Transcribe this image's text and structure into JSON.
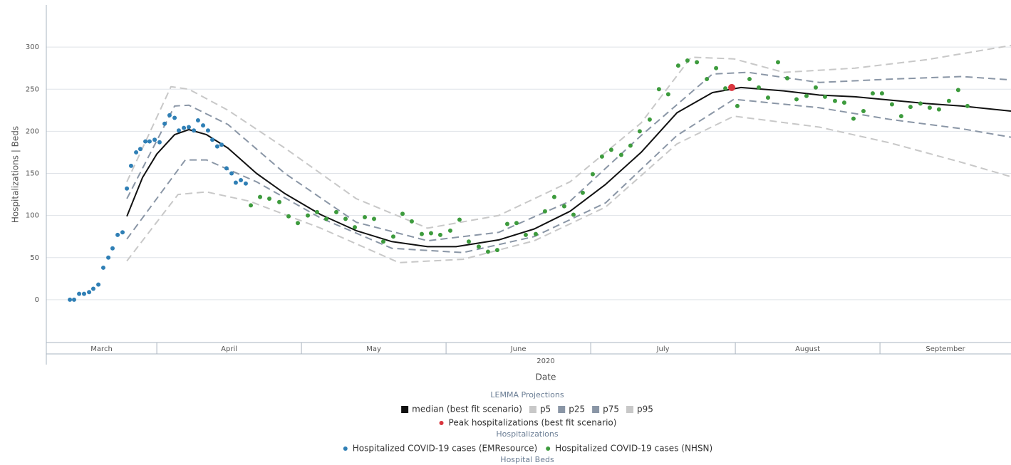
{
  "chart_data": {
    "type": "line",
    "y_label": "Hospitalizations | Beds",
    "x_label": "Date",
    "year": "2020",
    "months": [
      "March",
      "April",
      "May",
      "June",
      "July",
      "August",
      "September"
    ],
    "xlim": [
      3.236,
      9.906
    ],
    "xticks": [
      4,
      5,
      6,
      7,
      8,
      9
    ],
    "ylim": [
      -50,
      350
    ],
    "yticks": [
      0,
      50,
      100,
      150,
      200,
      250,
      300
    ],
    "grid": true,
    "legend_groups": [
      "LEMMA Projections",
      "Hospitalizations",
      "Hospital Beds"
    ],
    "series": [
      {
        "name": "median (best fit scenario)",
        "kind": "line",
        "group": 0,
        "color": "#111111",
        "dashed": false,
        "x": [
          3.793,
          3.901,
          4.0,
          4.123,
          4.221,
          4.344,
          4.492,
          4.689,
          4.886,
          5.133,
          5.379,
          5.625,
          5.872,
          6.069,
          6.364,
          6.61,
          6.857,
          7.103,
          7.349,
          7.596,
          7.842,
          8.039,
          8.334,
          8.581,
          8.827,
          9.074,
          9.32,
          9.566,
          9.906
        ],
        "values": [
          99,
          145,
          173,
          196,
          202,
          196,
          180,
          150,
          126,
          101,
          82,
          69,
          63,
          63,
          71,
          84,
          105,
          137,
          175,
          222,
          246,
          252,
          248,
          243,
          241,
          237,
          233,
          230,
          224
        ]
      },
      {
        "name": "p5",
        "kind": "line",
        "group": 0,
        "color": "#c8c8c8",
        "dashed": true,
        "x": [
          3.793,
          4.147,
          4.344,
          4.64,
          5.133,
          5.674,
          6.118,
          6.61,
          7.103,
          7.596,
          7.99,
          8.581,
          9.074,
          9.566,
          9.906
        ],
        "values": [
          46,
          125,
          128,
          117,
          85,
          44,
          48,
          70,
          110,
          185,
          218,
          205,
          186,
          163,
          146
        ]
      },
      {
        "name": "p25",
        "kind": "line",
        "group": 0,
        "color": "#8a96a6",
        "dashed": true,
        "x": [
          3.793,
          4.197,
          4.344,
          4.689,
          5.133,
          5.625,
          6.118,
          6.61,
          7.103,
          7.596,
          7.99,
          8.581,
          9.074,
          9.566,
          9.906
        ],
        "values": [
          72,
          166,
          166,
          140,
          97,
          61,
          56,
          75,
          115,
          195,
          238,
          228,
          214,
          203,
          193
        ]
      },
      {
        "name": "p75",
        "kind": "line",
        "group": 0,
        "color": "#8a96a6",
        "dashed": true,
        "x": [
          3.793,
          4.123,
          4.221,
          4.492,
          4.886,
          5.379,
          5.872,
          6.364,
          6.857,
          7.349,
          7.842,
          8.088,
          8.581,
          9.074,
          9.566,
          9.906
        ],
        "values": [
          120,
          230,
          231,
          208,
          150,
          92,
          70,
          80,
          117,
          195,
          268,
          270,
          258,
          262,
          265,
          261
        ]
      },
      {
        "name": "p95",
        "kind": "line",
        "group": 0,
        "color": "#c8c8c8",
        "dashed": true,
        "x": [
          3.793,
          4.098,
          4.221,
          4.492,
          4.886,
          5.379,
          5.872,
          6.364,
          6.857,
          7.349,
          7.694,
          7.99,
          8.334,
          8.827,
          9.32,
          9.906
        ],
        "values": [
          140,
          253,
          250,
          225,
          180,
          120,
          85,
          100,
          140,
          210,
          288,
          286,
          270,
          275,
          285,
          302
        ]
      },
      {
        "name": "Peak hospitalizations (best fit scenario)",
        "kind": "scatter",
        "group": 0,
        "color": "#d9363e",
        "x": [
          7.975
        ],
        "values": [
          252
        ]
      },
      {
        "name": "Hospitalized COVID-19 cases (EMResource)",
        "kind": "scatter",
        "group": 1,
        "color": "#2f7fb5",
        "x": [
          3.399,
          3.428,
          3.463,
          3.497,
          3.532,
          3.561,
          3.596,
          3.63,
          3.665,
          3.694,
          3.729,
          3.763,
          3.793,
          3.822,
          3.857,
          3.886,
          3.921,
          3.95,
          3.985,
          4.019,
          4.054,
          4.088,
          4.123,
          4.152,
          4.187,
          4.221,
          4.256,
          4.285,
          4.32,
          4.354,
          4.384,
          4.418,
          4.448,
          4.482,
          4.517,
          4.546,
          4.581,
          4.615
        ],
        "values": [
          0,
          0,
          7,
          7,
          9,
          13,
          18,
          38,
          50,
          61,
          77,
          80,
          132,
          159,
          175,
          179,
          188,
          188,
          190,
          187,
          209,
          219,
          216,
          201,
          204,
          205,
          201,
          213,
          207,
          201,
          190,
          182,
          184,
          156,
          150,
          139,
          142,
          138
        ]
      },
      {
        "name": "Hospitalized COVID-19 cases (NHSN)",
        "kind": "scatter",
        "group": 1,
        "color": "#3d9b3d",
        "x": [
          4.65,
          4.714,
          4.778,
          4.847,
          4.911,
          4.975,
          5.044,
          5.108,
          5.172,
          5.241,
          5.305,
          5.369,
          5.438,
          5.502,
          5.566,
          5.635,
          5.699,
          5.763,
          5.832,
          5.896,
          5.96,
          6.029,
          6.093,
          6.157,
          6.226,
          6.29,
          6.354,
          6.423,
          6.487,
          6.551,
          6.62,
          6.684,
          6.748,
          6.817,
          6.881,
          6.945,
          7.014,
          7.078,
          7.142,
          7.211,
          7.275,
          7.339,
          7.408,
          7.472,
          7.536,
          7.605,
          7.669,
          7.734,
          7.803,
          7.867,
          7.931,
          8.014,
          8.098,
          8.162,
          8.226,
          8.295,
          8.359,
          8.423,
          8.492,
          8.556,
          8.62,
          8.689,
          8.753,
          8.817,
          8.886,
          8.95,
          9.014,
          9.083,
          9.147,
          9.211,
          9.28,
          9.344,
          9.408,
          9.477,
          9.541,
          9.605
        ],
        "values": [
          112,
          122,
          120,
          116,
          99,
          91,
          100,
          104,
          96,
          104,
          96,
          86,
          98,
          96,
          69,
          75,
          102,
          93,
          78,
          79,
          77,
          82,
          95,
          69,
          63,
          57,
          59,
          90,
          91,
          77,
          78,
          105,
          122,
          111,
          101,
          127,
          149,
          170,
          178,
          172,
          183,
          200,
          214,
          250,
          244,
          278,
          284,
          282,
          262,
          275,
          251,
          230,
          262,
          252,
          240,
          282,
          263,
          238,
          242,
          252,
          241,
          236,
          234,
          215,
          224,
          245,
          245,
          232,
          218,
          229,
          233,
          228,
          226,
          236,
          249,
          230
        ]
      }
    ]
  }
}
